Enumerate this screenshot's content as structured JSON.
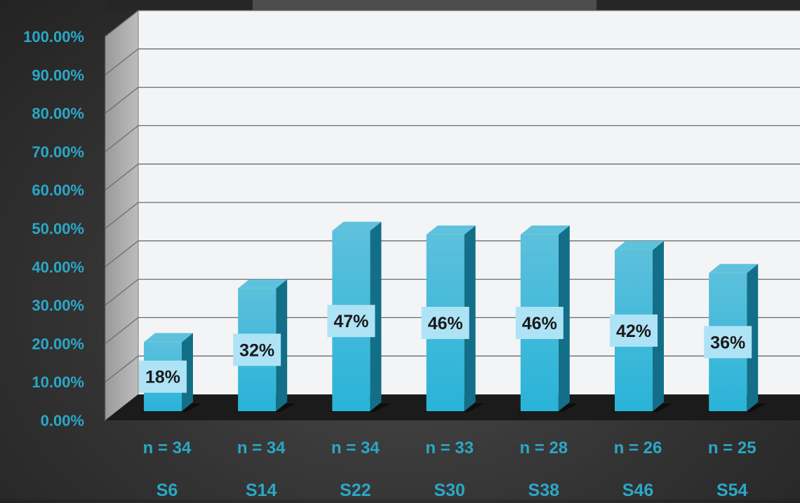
{
  "chart_data": {
    "type": "bar",
    "title": "",
    "xlabel": "",
    "ylabel": "",
    "categories": [
      "S6",
      "S14",
      "S22",
      "S30",
      "S38",
      "S46",
      "S54"
    ],
    "n_labels": [
      "n = 34",
      "n = 34",
      "n = 34",
      "n = 33",
      "n = 28",
      "n = 26",
      "n = 25"
    ],
    "values": [
      0.18,
      0.32,
      0.47,
      0.46,
      0.46,
      0.42,
      0.36
    ],
    "value_labels": [
      "18%",
      "32%",
      "47%",
      "46%",
      "46%",
      "42%",
      "36%"
    ],
    "ylim": [
      0,
      1
    ],
    "yticks": [
      "0.00%",
      "10.00%",
      "20.00%",
      "30.00%",
      "40.00%",
      "50.00%",
      "60.00%",
      "70.00%",
      "80.00%",
      "90.00%",
      "100.00%"
    ],
    "grid": true,
    "three_d": true,
    "colors": {
      "bar_front": "#29b3d8",
      "bar_side": "#136f88",
      "bar_top": "#5fc2dc",
      "tick_text": "#2aa8c7",
      "label_box": "#aee3f5",
      "label_text": "#1a1a1a",
      "plot_wall": "#f3f4f6",
      "side_wall": "#bdbdbd",
      "floor": "#1b1b1b",
      "gridline": "#6b6b6b"
    }
  }
}
